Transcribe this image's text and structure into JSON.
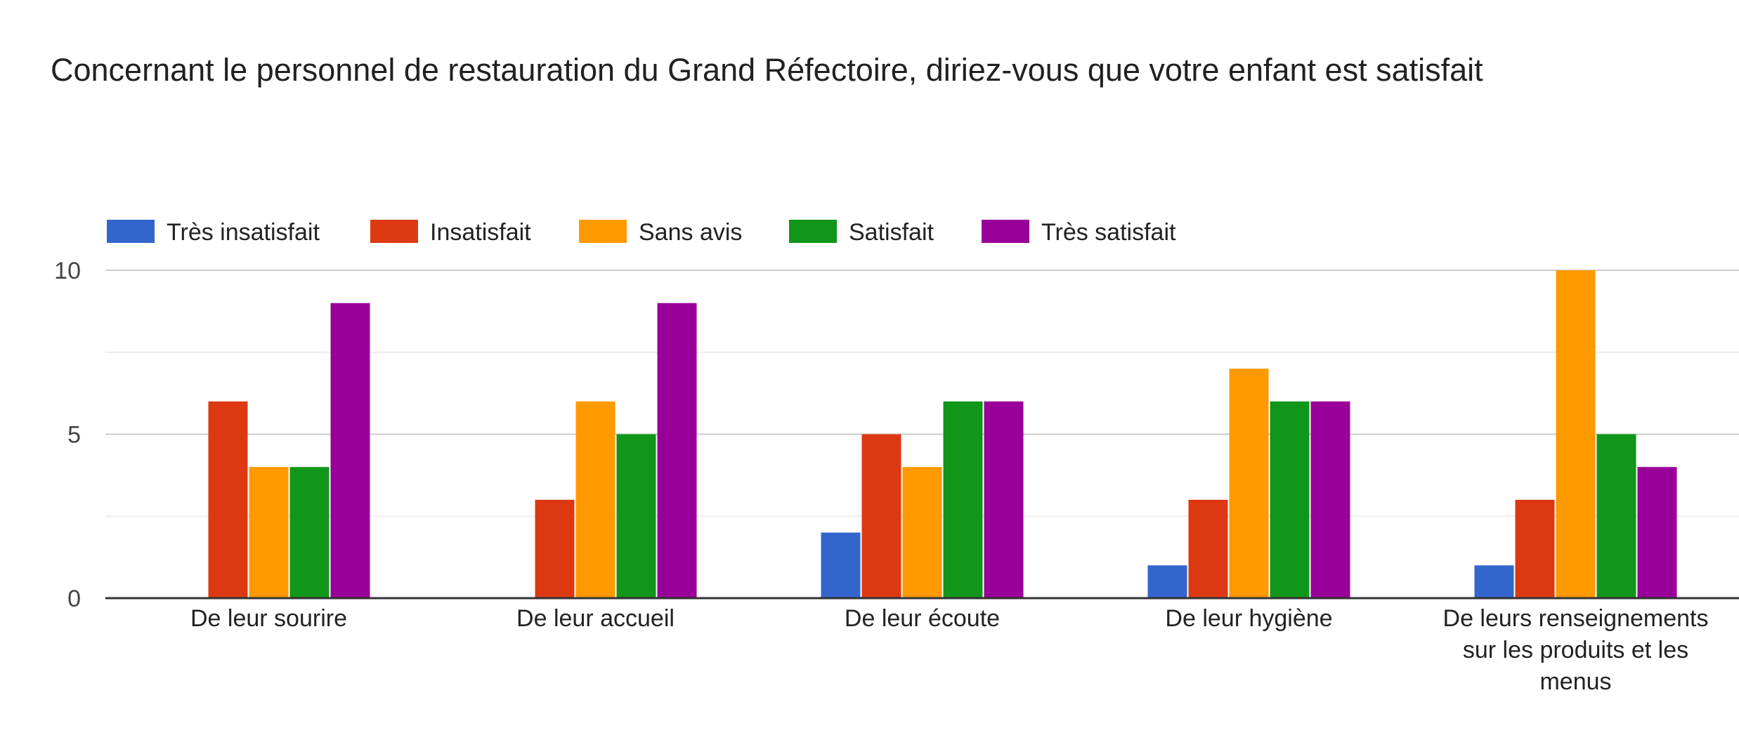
{
  "chart_data": {
    "type": "bar",
    "title": "Concernant le personnel de restauration du Grand Réfectoire, diriez-vous que votre enfant est satisfait",
    "categories": [
      "De leur sourire",
      "De leur accueil",
      "De leur écoute",
      "De leur hygiène",
      "De leurs renseignements sur les produits et les menus"
    ],
    "category_lines": [
      [
        "De leur sourire"
      ],
      [
        "De leur accueil"
      ],
      [
        "De leur écoute"
      ],
      [
        "De leur hygiène"
      ],
      [
        "De leurs renseignements",
        "sur les produits et les",
        "menus"
      ]
    ],
    "series": [
      {
        "name": "Très insatisfait",
        "color": "#3366cc",
        "values": [
          0,
          0,
          2,
          1,
          1
        ]
      },
      {
        "name": "Insatisfait",
        "color": "#dc3912",
        "values": [
          6,
          3,
          5,
          3,
          3
        ]
      },
      {
        "name": "Sans avis",
        "color": "#ff9900",
        "values": [
          4,
          6,
          4,
          7,
          10
        ]
      },
      {
        "name": "Satisfait",
        "color": "#109618",
        "values": [
          4,
          5,
          6,
          6,
          5
        ]
      },
      {
        "name": "Très satisfait",
        "color": "#990099",
        "values": [
          9,
          9,
          6,
          6,
          4
        ]
      }
    ],
    "ylim": [
      0,
      10
    ],
    "yticks": [
      "0",
      "5",
      "10"
    ],
    "grid": true,
    "legend_position": "top-left"
  }
}
